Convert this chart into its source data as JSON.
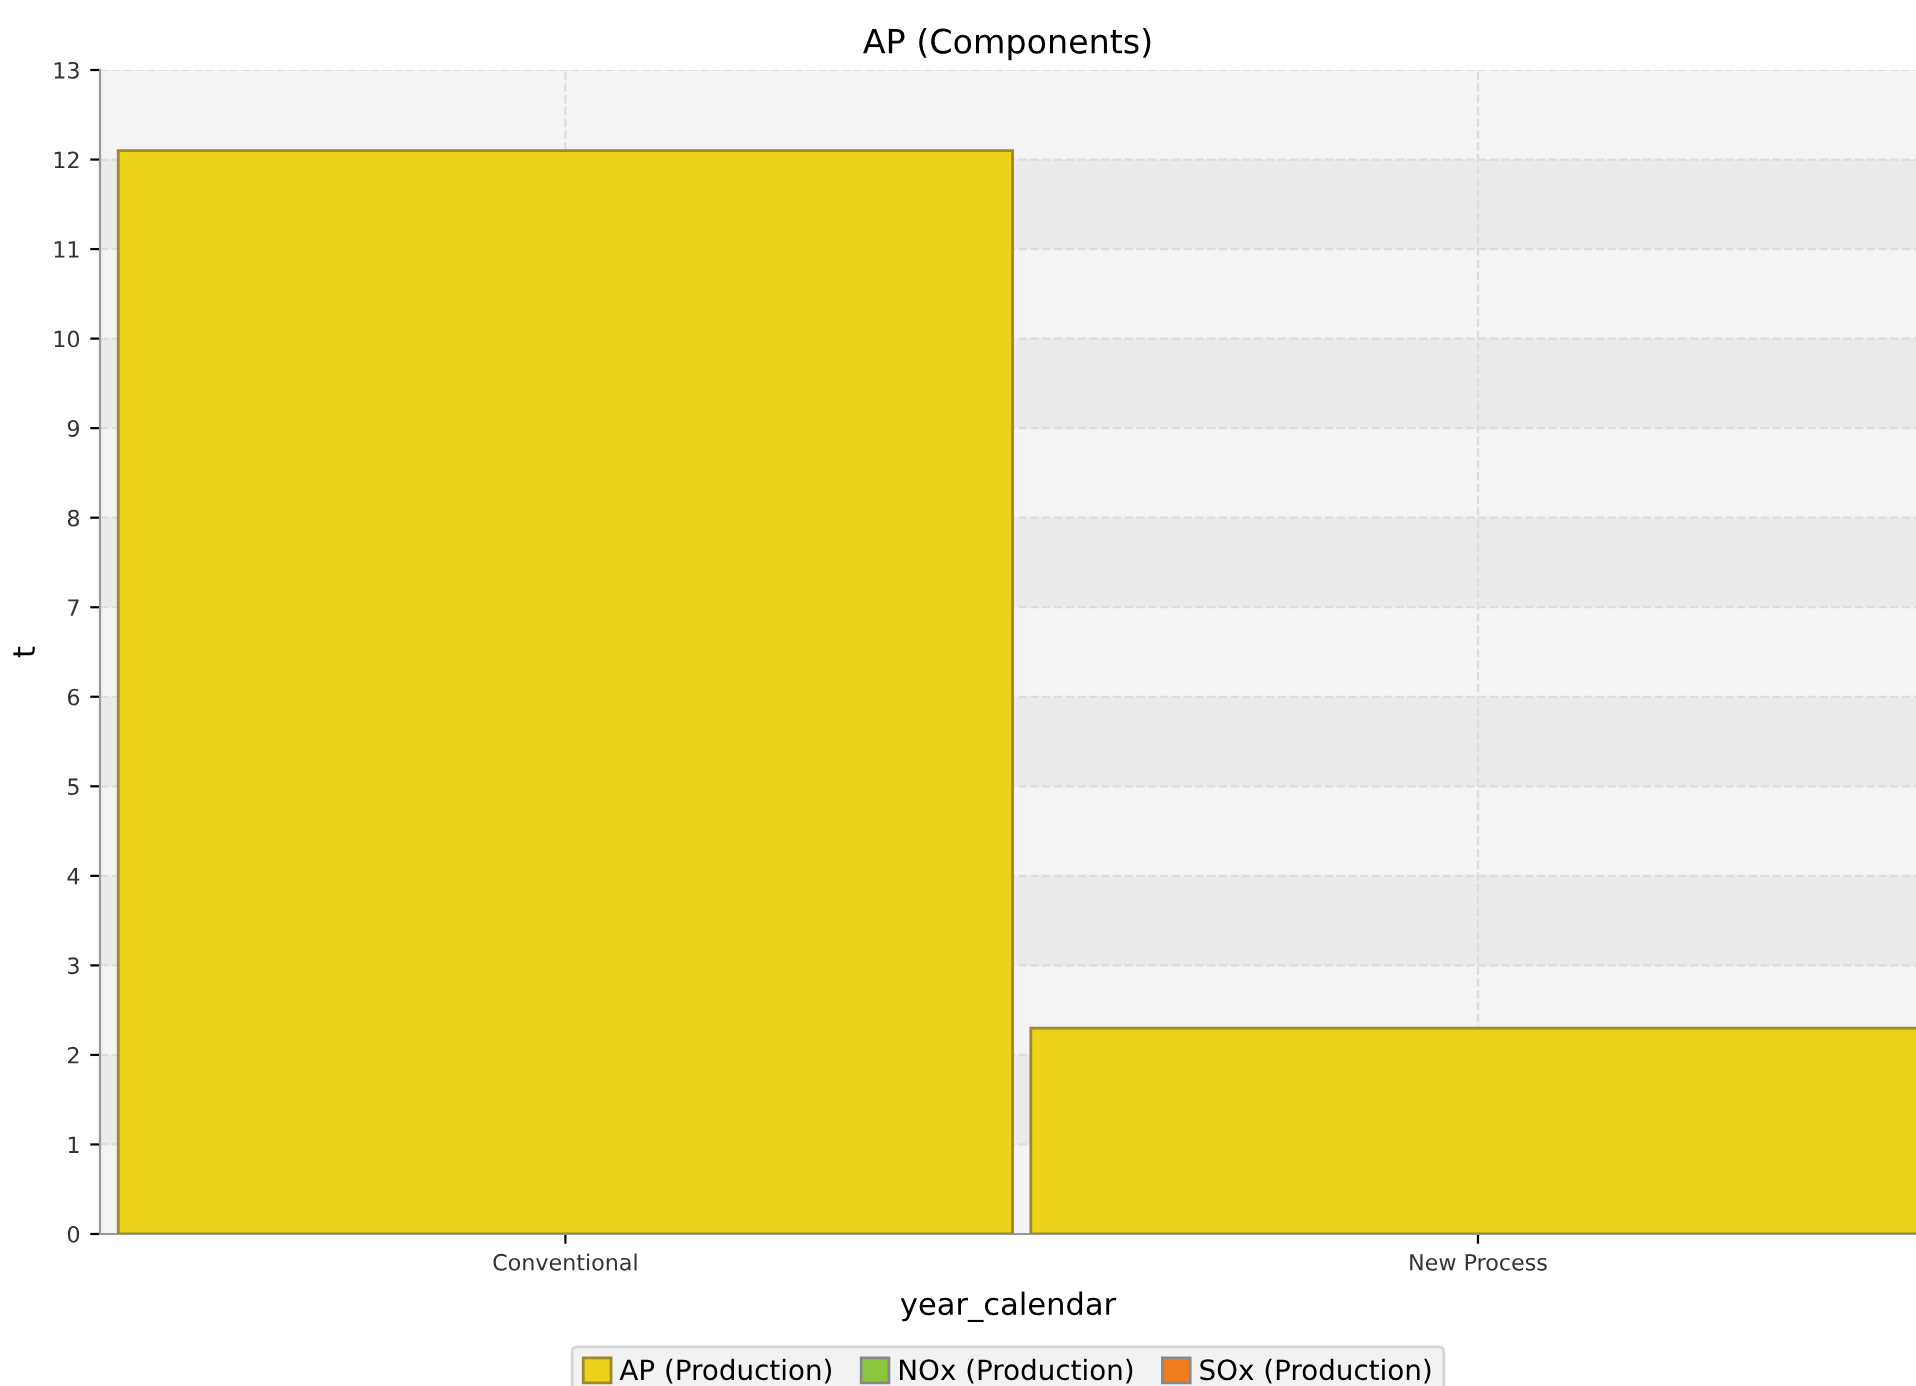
{
  "chart_data": {
    "type": "bar",
    "title": "AP (Components)",
    "xlabel": "year_calendar",
    "ylabel": "t",
    "categories": [
      "Conventional",
      "New Process"
    ],
    "series": [
      {
        "name": "AP (Production)",
        "color": "#ecd21a",
        "values": [
          12.1,
          2.3
        ]
      },
      {
        "name": "NOx (Production)",
        "color": "#8cc63f",
        "values": [
          null,
          null
        ]
      },
      {
        "name": "SOx (Production)",
        "color": "#f07c1e",
        "values": [
          null,
          null
        ]
      }
    ],
    "ylim": [
      0,
      13
    ],
    "yticks": [
      0,
      1,
      2,
      3,
      4,
      5,
      6,
      7,
      8,
      9,
      10,
      11,
      12,
      13
    ],
    "grid": true,
    "legend": "bottom"
  }
}
